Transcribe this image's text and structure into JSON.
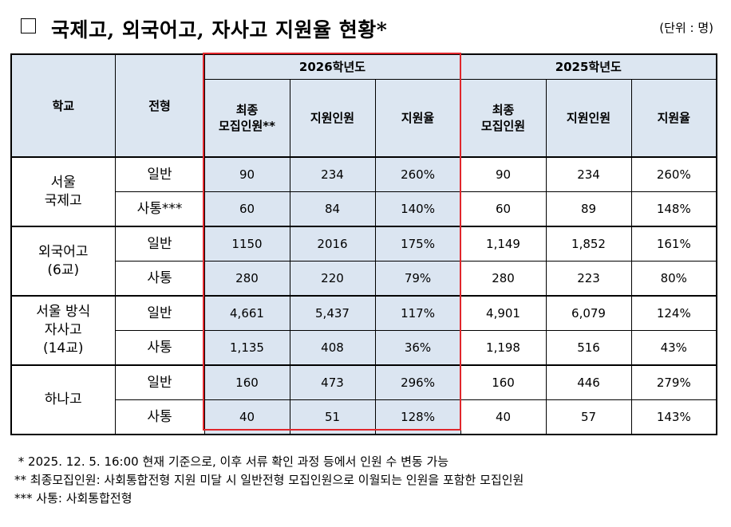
{
  "title": "국제고, 외국어고, 자사고 지원율 현황*",
  "unit": "(단위 : 명)",
  "header": {
    "school": "학교",
    "type": "전형",
    "year_2026": "2026학년도",
    "year_2025": "2025학년도",
    "cols_2026": [
      "최종\n모집인원**",
      "지원인원",
      "지원율"
    ],
    "cols_2025": [
      "최종\n모집인원",
      "지원인원",
      "지원율"
    ]
  },
  "groups": [
    {
      "school": "서울\n국제고",
      "rows": [
        {
          "type": "일반",
          "y2026": [
            "90",
            "234",
            "260%"
          ],
          "y2025": [
            "90",
            "234",
            "260%"
          ]
        },
        {
          "type": "사통***",
          "y2026": [
            "60",
            "84",
            "140%"
          ],
          "y2025": [
            "60",
            "89",
            "148%"
          ]
        }
      ]
    },
    {
      "school": "외국어고\n(6교)",
      "rows": [
        {
          "type": "일반",
          "y2026": [
            "1150",
            "2016",
            "175%"
          ],
          "y2025": [
            "1,149",
            "1,852",
            "161%"
          ]
        },
        {
          "type": "사통",
          "y2026": [
            "280",
            "220",
            "79%"
          ],
          "y2025": [
            "280",
            "223",
            "80%"
          ]
        }
      ]
    },
    {
      "school": "서울 방식\n자사고\n(14교)",
      "rows": [
        {
          "type": "일반",
          "y2026": [
            "4,661",
            "5,437",
            "117%"
          ],
          "y2025": [
            "4,901",
            "6,079",
            "124%"
          ]
        },
        {
          "type": "사통",
          "y2026": [
            "1,135",
            "408",
            "36%"
          ],
          "y2025": [
            "1,198",
            "516",
            "43%"
          ]
        }
      ]
    },
    {
      "school": "하나고",
      "rows": [
        {
          "type": "일반",
          "y2026": [
            "160",
            "473",
            "296%"
          ],
          "y2025": [
            "160",
            "446",
            "279%"
          ]
        },
        {
          "type": "사통",
          "y2026": [
            "40",
            "51",
            "128%"
          ],
          "y2025": [
            "40",
            "57",
            "143%"
          ]
        }
      ]
    }
  ],
  "notes": [
    " * 2025. 12. 5. 16:00 현재 기준으로, 이후 서류 확인 과정 등에서 인원 수 변동 가능",
    "** 최종모집인원: 사회통합전형 지원 미달 시 일반전형 모집인원으로 이월되는 인원을 포함한 모집인원",
    "*** 사통: 사회통합전형"
  ],
  "colors": {
    "header_bg": "#dce6f1",
    "highlight_bg": "#dbe5f1",
    "highlight_border": "#e0262b"
  }
}
